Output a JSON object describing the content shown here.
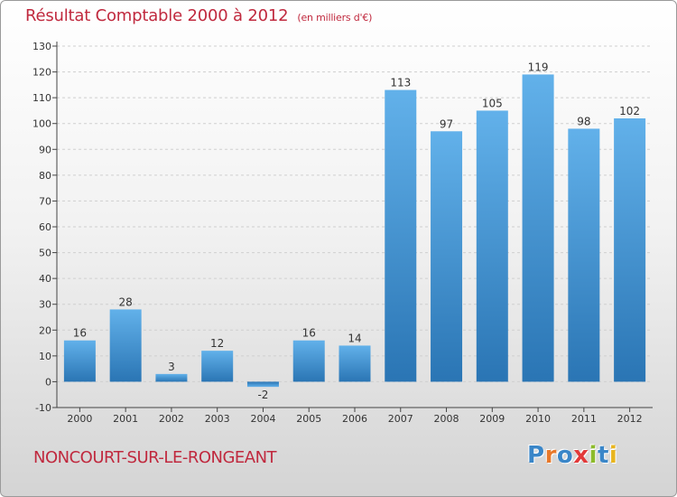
{
  "header": {
    "title": "Résultat Comptable 2000 à 2012",
    "subtitle": "(en milliers d'€)"
  },
  "footer": {
    "town": "NONCOURT-SUR-LE-RONGEANT",
    "logo": {
      "text": "Proxiti",
      "letters": [
        {
          "ch": "P",
          "color": "#3a86c8"
        },
        {
          "ch": "r",
          "color": "#e8782a"
        },
        {
          "ch": "o",
          "color": "#3a86c8"
        },
        {
          "ch": "x",
          "color": "#e23a3a"
        },
        {
          "ch": "i",
          "color": "#8dbb2c"
        },
        {
          "ch": "t",
          "color": "#3a86c8"
        },
        {
          "ch": "i",
          "color": "#e8b51f"
        }
      ]
    }
  },
  "colors": {
    "title": "#c0293e",
    "bar_top": "#62b1ea",
    "bar_bottom": "#2a75b4",
    "grid": "#cfcfcf",
    "axis": "#444444"
  },
  "chart_data": {
    "type": "bar",
    "title": "Résultat Comptable 2000 à 2012",
    "subtitle": "(en milliers d'€)",
    "xlabel": "",
    "ylabel": "",
    "categories": [
      "2000",
      "2001",
      "2002",
      "2003",
      "2004",
      "2005",
      "2006",
      "2007",
      "2008",
      "2009",
      "2010",
      "2011",
      "2012"
    ],
    "values": [
      16,
      28,
      3,
      12,
      -2,
      16,
      14,
      113,
      97,
      105,
      119,
      98,
      102
    ],
    "ylim": [
      -10,
      130
    ],
    "yticks": [
      -10,
      0,
      10,
      20,
      30,
      40,
      50,
      60,
      70,
      80,
      90,
      100,
      110,
      120,
      130
    ],
    "grid": "horizontal dashed",
    "legend": "none",
    "data_labels": true
  }
}
